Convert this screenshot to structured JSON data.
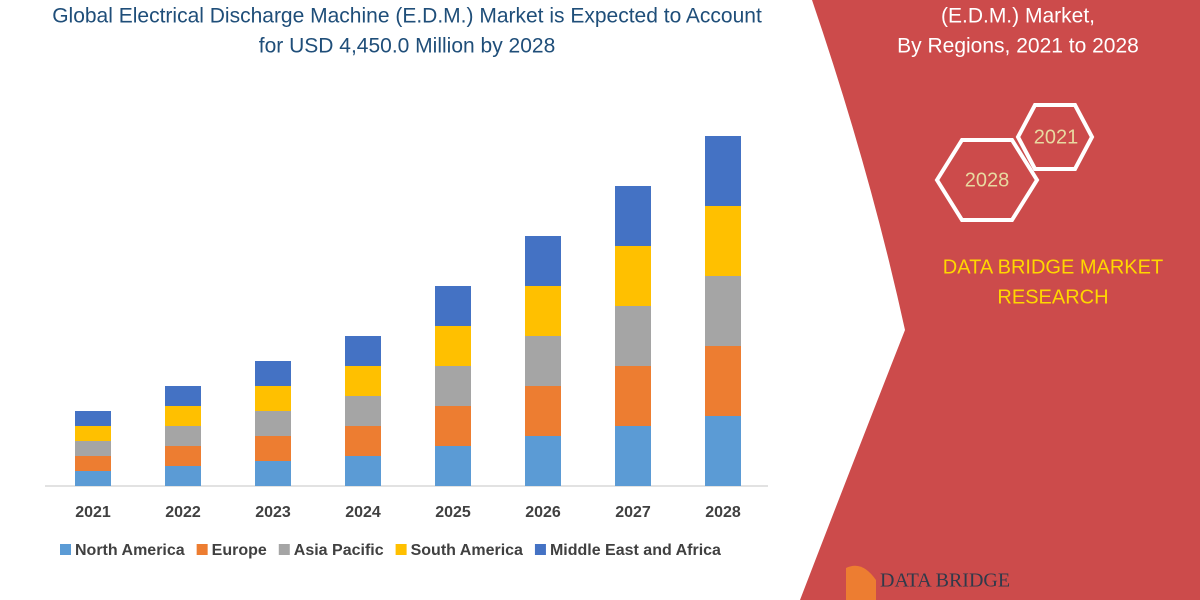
{
  "chart_data": {
    "type": "stacked_bar",
    "title_lines": [
      "Global Electrical Discharge Machine (E.D.M.) Market is Expected to Account",
      "for USD 4,450.0 Million by 2028"
    ],
    "categories": [
      "2021",
      "2022",
      "2023",
      "2024",
      "2025",
      "2026",
      "2027",
      "2028"
    ],
    "series": [
      {
        "name": "North America",
        "color": "#5b9bd5",
        "values": [
          15,
          20,
          25,
          30,
          40,
          50,
          60,
          70
        ]
      },
      {
        "name": "Europe",
        "color": "#ed7d31",
        "values": [
          15,
          20,
          25,
          30,
          40,
          50,
          60,
          70
        ]
      },
      {
        "name": "Asia Pacific",
        "color": "#a5a5a5",
        "values": [
          15,
          20,
          25,
          30,
          40,
          50,
          60,
          70
        ]
      },
      {
        "name": "South America",
        "color": "#ffc000",
        "values": [
          15,
          20,
          25,
          30,
          40,
          50,
          60,
          70
        ]
      },
      {
        "name": "Middle East and Africa",
        "color": "#4472c4",
        "values": [
          15,
          20,
          25,
          30,
          40,
          50,
          60,
          70
        ]
      }
    ],
    "ylim": [
      0,
      355
    ],
    "legend": "bottom"
  },
  "panel": {
    "title_lines": [
      "(E.D.M.) Market,",
      "By Regions, 2021 to 2028"
    ],
    "hexagons": [
      "2021",
      "2028"
    ],
    "brand_lines": [
      "DATA BRIDGE MARKET",
      "RESEARCH"
    ],
    "logo": "DATA BRIDGE"
  }
}
